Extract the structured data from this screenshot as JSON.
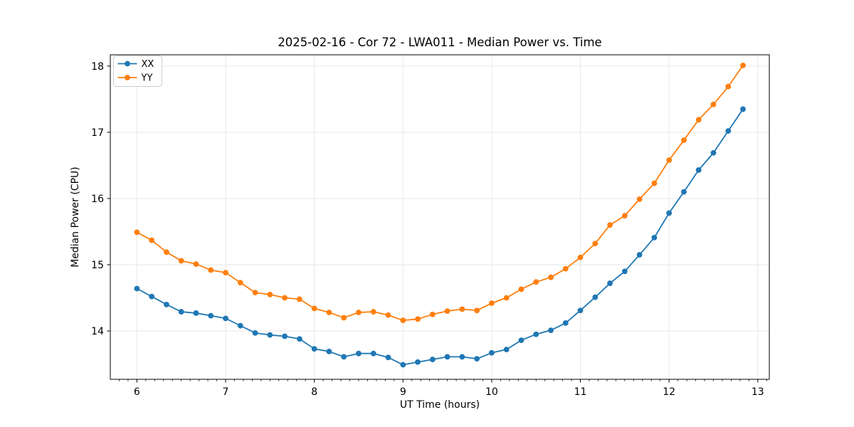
{
  "figure": {
    "title": "2025-02-16 - Cor 72 - LWA011 - Median Power vs. Time",
    "xlabel": "UT Time (hours)",
    "ylabel": "Median Power (CPU)"
  },
  "chart_data": {
    "type": "line",
    "title": "2025-02-16 - Cor 72 - LWA011 - Median Power vs. Time",
    "xlabel": "UT Time (hours)",
    "ylabel": "Median Power (CPU)",
    "xlim": [
      5.7,
      13.13
    ],
    "ylim": [
      13.27,
      18.17
    ],
    "x_ticks": [
      6,
      7,
      8,
      9,
      10,
      11,
      12,
      13
    ],
    "y_ticks": [
      14,
      15,
      16,
      17,
      18
    ],
    "x_minor_tick_step": 0.1,
    "grid": true,
    "grid_color": "#e6e6e6",
    "legend_position": "upper-left",
    "background_color": "#ffffff",
    "x": [
      6.0,
      6.1667,
      6.3333,
      6.5,
      6.6667,
      6.8333,
      7.0,
      7.1667,
      7.3333,
      7.5,
      7.6667,
      7.8333,
      8.0,
      8.1667,
      8.3333,
      8.5,
      8.6667,
      8.8333,
      9.0,
      9.1667,
      9.3333,
      9.5,
      9.6667,
      9.8333,
      10.0,
      10.1667,
      10.3333,
      10.5,
      10.6667,
      10.8333,
      11.0,
      11.1667,
      11.3333,
      11.5,
      11.6667,
      11.8333,
      12.0,
      12.1667,
      12.3333,
      12.5,
      12.6667,
      12.8333
    ],
    "series": [
      {
        "name": "XX",
        "color": "#1f77b4",
        "marker": "circle",
        "values": [
          14.64,
          14.52,
          14.4,
          14.29,
          14.27,
          14.23,
          14.19,
          14.08,
          13.97,
          13.94,
          13.92,
          13.88,
          13.73,
          13.69,
          13.61,
          13.66,
          13.66,
          13.6,
          13.49,
          13.53,
          13.57,
          13.61,
          13.61,
          13.58,
          13.67,
          13.72,
          13.86,
          13.95,
          14.01,
          14.12,
          14.31,
          14.51,
          14.72,
          14.9,
          15.15,
          15.41,
          15.78,
          16.1,
          16.43,
          16.69,
          17.02,
          17.35
        ]
      },
      {
        "name": "YY",
        "color": "#ff7f0e",
        "marker": "circle",
        "values": [
          15.49,
          15.37,
          15.19,
          15.06,
          15.01,
          14.92,
          14.88,
          14.73,
          14.58,
          14.55,
          14.5,
          14.48,
          14.34,
          14.28,
          14.2,
          14.28,
          14.29,
          14.24,
          14.16,
          14.18,
          14.25,
          14.3,
          14.33,
          14.31,
          14.42,
          14.5,
          14.63,
          14.74,
          14.81,
          14.94,
          15.11,
          15.32,
          15.6,
          15.74,
          15.99,
          16.23,
          16.58,
          16.88,
          17.19,
          17.42,
          17.69,
          18.01
        ]
      }
    ]
  }
}
